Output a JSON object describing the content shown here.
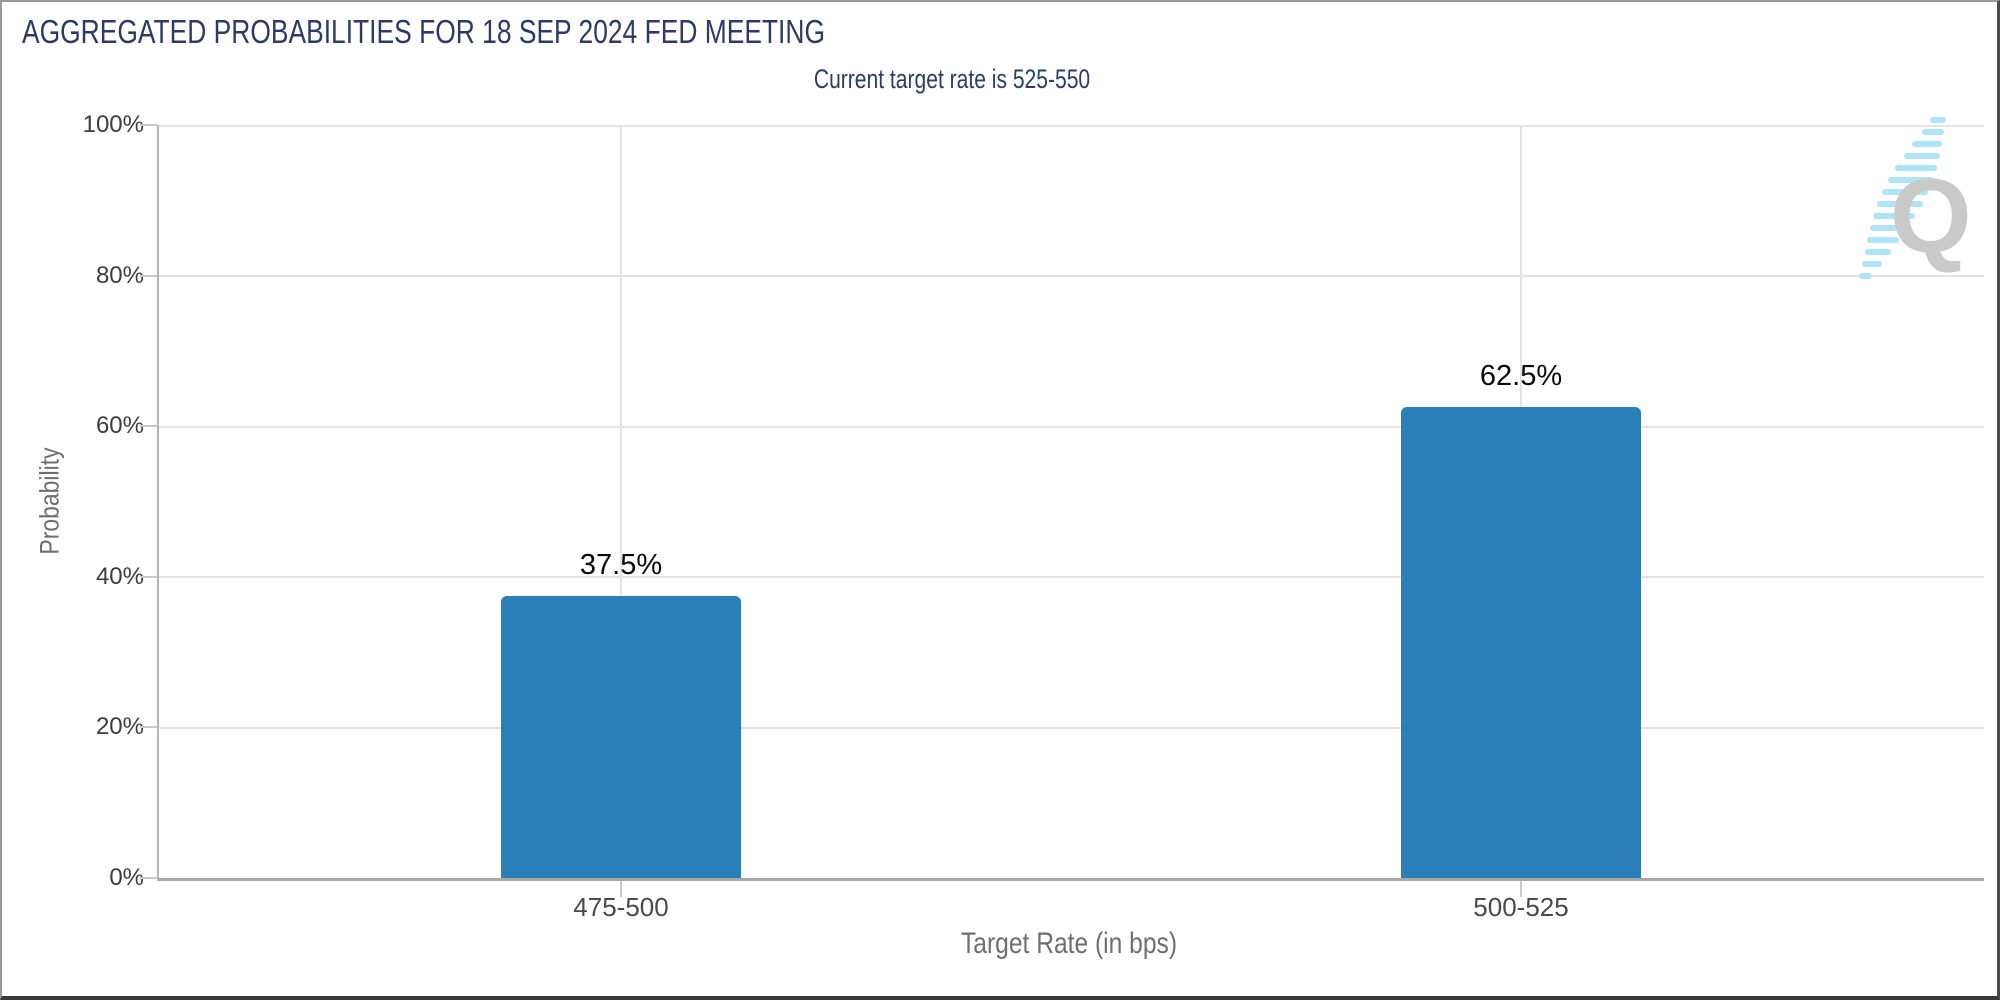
{
  "chart_data": {
    "type": "bar",
    "title": "AGGREGATED PROBABILITIES FOR 18 SEP 2024 FED MEETING",
    "subtitle": "Current target rate is 525-550",
    "xlabel": "Target Rate (in bps)",
    "ylabel": "Probability",
    "categories": [
      "475-500",
      "500-525"
    ],
    "values": [
      37.5,
      62.5
    ],
    "value_labels": [
      "37.5%",
      "62.5%"
    ],
    "ylim": [
      0,
      100
    ],
    "ytick_labels": [
      "100%",
      "80%",
      "60%",
      "40%",
      "20%",
      "0%"
    ],
    "grid": true,
    "legend": "none",
    "bar_color": "#2b7fb9"
  },
  "colors": {
    "title_navy": "#2b3a66",
    "bar_blue": "#2b7fb9",
    "gridline": "#e3e3e3",
    "y_axis_line": "#b5b5b5",
    "x_axis_line": "#a8a8a8",
    "tick_label": "#3d3d3d",
    "category_label": "#4a4a4a",
    "axis_title": "#6f6f6f",
    "watermark_gray": "#c9c9c9",
    "watermark_blue": "#aee3f8"
  },
  "watermark": {
    "letter": "Q"
  }
}
